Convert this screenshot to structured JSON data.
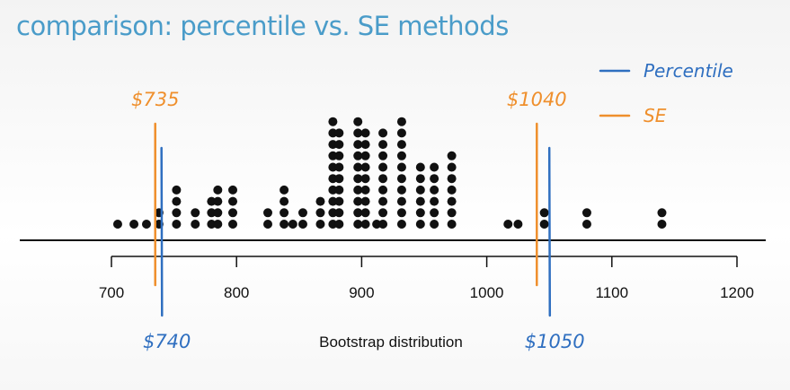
{
  "title": "comparison: percentile vs. SE methods",
  "colors": {
    "percentile": "#2f6fc0",
    "se": "#ef8f2c",
    "dots": "#111111",
    "title": "#4a9cc9"
  },
  "chart_data": {
    "type": "scatter",
    "subtype": "dot-plot",
    "xlabel": "Bootstrap distribution",
    "xlim": [
      700,
      1200
    ],
    "ticks": [
      700,
      800,
      900,
      1000,
      1100,
      1200
    ],
    "tick_labels": [
      "700",
      "800",
      "900",
      "1000",
      "1100",
      "1200"
    ],
    "stacks": [
      {
        "x": 705,
        "count": 1
      },
      {
        "x": 718,
        "count": 1
      },
      {
        "x": 728,
        "count": 1
      },
      {
        "x": 738,
        "count": 2
      },
      {
        "x": 752,
        "count": 4
      },
      {
        "x": 767,
        "count": 2
      },
      {
        "x": 780,
        "count": 3
      },
      {
        "x": 785,
        "count": 4
      },
      {
        "x": 797,
        "count": 4
      },
      {
        "x": 825,
        "count": 2
      },
      {
        "x": 838,
        "count": 4
      },
      {
        "x": 845,
        "count": 1
      },
      {
        "x": 853,
        "count": 2
      },
      {
        "x": 867,
        "count": 3
      },
      {
        "x": 877,
        "count": 10
      },
      {
        "x": 882,
        "count": 9
      },
      {
        "x": 897,
        "count": 10
      },
      {
        "x": 903,
        "count": 9
      },
      {
        "x": 912,
        "count": 1
      },
      {
        "x": 917,
        "count": 9
      },
      {
        "x": 932,
        "count": 10
      },
      {
        "x": 947,
        "count": 6
      },
      {
        "x": 958,
        "count": 6
      },
      {
        "x": 972,
        "count": 7
      },
      {
        "x": 1017,
        "count": 1
      },
      {
        "x": 1025,
        "count": 1
      },
      {
        "x": 1046,
        "count": 2
      },
      {
        "x": 1080,
        "count": 2
      },
      {
        "x": 1140,
        "count": 2
      }
    ],
    "series": [
      {
        "name": "Percentile",
        "color": "#2f6fc0",
        "lines": [
          740,
          1050
        ]
      },
      {
        "name": "SE",
        "color": "#ef8f2c",
        "lines": [
          735,
          1040
        ]
      }
    ],
    "annotations": [
      {
        "text": "$735",
        "series": "SE",
        "x": 735
      },
      {
        "text": "$1040",
        "series": "SE",
        "x": 1040
      },
      {
        "text": "$740",
        "series": "Percentile",
        "x": 740
      },
      {
        "text": "$1050",
        "series": "Percentile",
        "x": 1050
      }
    ],
    "legend": {
      "placement": "top-right",
      "entries": [
        "Percentile",
        "SE"
      ]
    }
  }
}
